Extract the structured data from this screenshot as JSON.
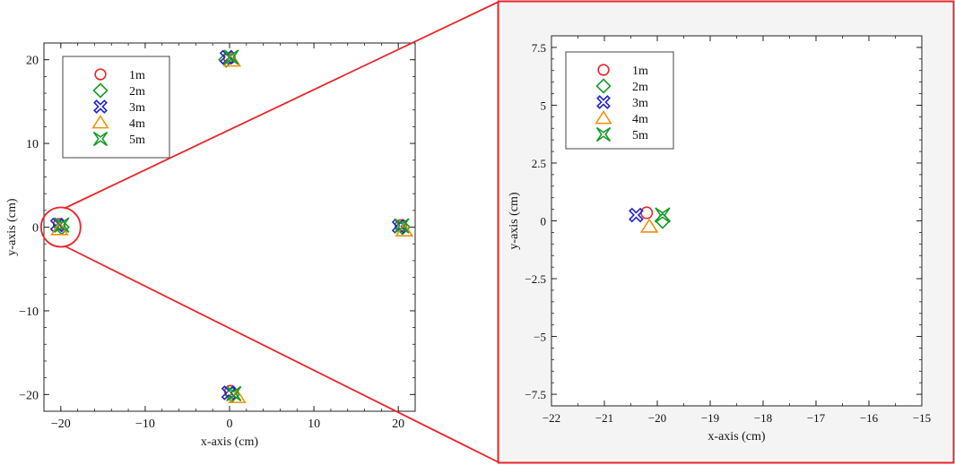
{
  "figure": {
    "zoom_color": "#e8262a"
  },
  "chart_data": [
    {
      "type": "scatter",
      "title": "",
      "xlabel": "x-axis (cm)",
      "ylabel": "y-axis (cm)",
      "xlim": [
        -22,
        22
      ],
      "ylim": [
        -22,
        22
      ],
      "xticks": [
        -20,
        -10,
        0,
        10,
        20
      ],
      "yticks": [
        -20,
        -10,
        0,
        10,
        20
      ],
      "xtick_labels": [
        "−20",
        "−10",
        "0",
        "10",
        "20"
      ],
      "ytick_labels": [
        "−20",
        "−10",
        "0",
        "10",
        "20"
      ],
      "minor_step": 2,
      "grid": false,
      "background": "#ffffff",
      "legend_position": "top-left",
      "series": [
        {
          "name": "1m",
          "marker": "circle",
          "color": "#e8262a",
          "x": [
            -20.2,
            0.0,
            20.3,
            0.1
          ],
          "y": [
            0.35,
            20.2,
            0.2,
            -19.6
          ]
        },
        {
          "name": "2m",
          "marker": "diamond",
          "color": "#1a9a2a",
          "x": [
            -19.9,
            -0.4,
            20.5,
            0.3
          ],
          "y": [
            0.0,
            20.0,
            0.0,
            -20.0
          ]
        },
        {
          "name": "3m",
          "marker": "x-cross",
          "color": "#2222cc",
          "x": [
            -20.4,
            -0.3,
            20.1,
            -0.1
          ],
          "y": [
            0.25,
            20.3,
            0.1,
            -19.8
          ]
        },
        {
          "name": "4m",
          "marker": "triangle",
          "color": "#f0900a",
          "x": [
            -20.15,
            0.3,
            20.7,
            0.9
          ],
          "y": [
            -0.25,
            19.9,
            -0.4,
            -20.3
          ]
        },
        {
          "name": "5m",
          "marker": "star4",
          "color": "#1a9a2a",
          "x": [
            -19.9,
            0.2,
            20.4,
            0.5
          ],
          "y": [
            0.25,
            20.3,
            0.15,
            -19.9
          ]
        }
      ]
    },
    {
      "type": "scatter",
      "title": "",
      "xlabel": "x-axis (cm)",
      "ylabel": "y-axis (cm)",
      "xlim": [
        -22,
        -15
      ],
      "ylim": [
        -8,
        8
      ],
      "xticks": [
        -22,
        -21,
        -20,
        -19,
        -18,
        -17,
        -16,
        -15
      ],
      "yticks": [
        -7.5,
        -5,
        -2.5,
        0,
        2.5,
        5,
        7.5
      ],
      "xtick_labels": [
        "−22",
        "−21",
        "−20",
        "−19",
        "−18",
        "−17",
        "−16",
        "−15"
      ],
      "ytick_labels": [
        "−7.5",
        "−5",
        "−2.5",
        "0",
        "2.5",
        "5",
        "7.5"
      ],
      "minor_step": 0.5,
      "grid": false,
      "background": "#ffffff",
      "legend_position": "top-left",
      "series": [
        {
          "name": "1m",
          "marker": "circle",
          "color": "#e8262a",
          "x": [
            -20.2
          ],
          "y": [
            0.35
          ]
        },
        {
          "name": "2m",
          "marker": "diamond",
          "color": "#1a9a2a",
          "x": [
            -19.9
          ],
          "y": [
            0.0
          ]
        },
        {
          "name": "3m",
          "marker": "x-cross",
          "color": "#2222cc",
          "x": [
            -20.4
          ],
          "y": [
            0.25
          ]
        },
        {
          "name": "4m",
          "marker": "triangle",
          "color": "#f0900a",
          "x": [
            -20.15
          ],
          "y": [
            -0.25
          ]
        },
        {
          "name": "5m",
          "marker": "star4",
          "color": "#1a9a2a",
          "x": [
            -19.9
          ],
          "y": [
            0.25
          ]
        }
      ]
    }
  ]
}
